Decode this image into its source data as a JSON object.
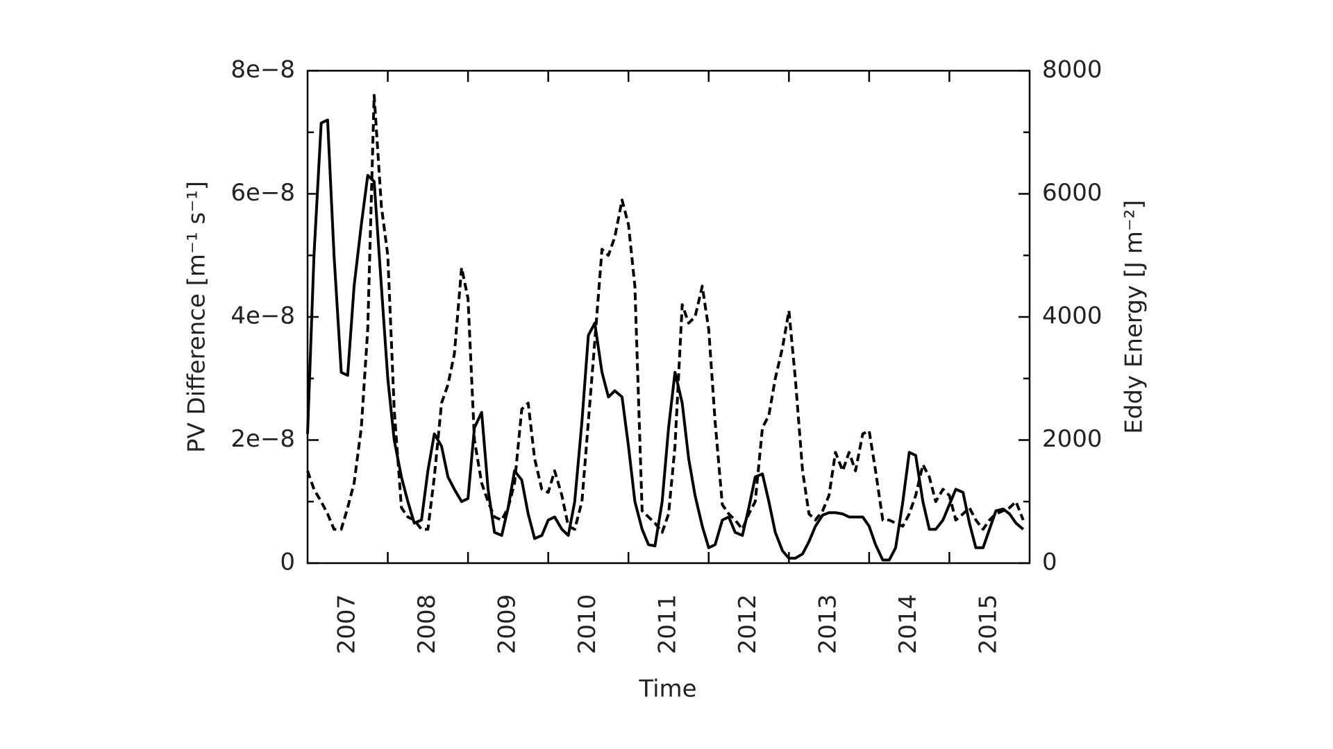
{
  "chart_data": {
    "type": "line",
    "xlabel": "Time",
    "ylabel": "PV Difference [m⁻¹ s⁻¹]",
    "y2label": "Eddy Energy [J m⁻²]",
    "xlim": [
      2007,
      2016
    ],
    "xticks": [
      {
        "value": 2007.5,
        "label": "2007"
      },
      {
        "value": 2008.5,
        "label": "2008"
      },
      {
        "value": 2009.5,
        "label": "2009"
      },
      {
        "value": 2010.5,
        "label": "2010"
      },
      {
        "value": 2011.5,
        "label": "2011"
      },
      {
        "value": 2012.5,
        "label": "2012"
      },
      {
        "value": 2013.5,
        "label": "2013"
      },
      {
        "value": 2014.5,
        "label": "2014"
      },
      {
        "value": 2015.5,
        "label": "2015"
      }
    ],
    "xminor": [
      2008,
      2009,
      2010,
      2011,
      2012,
      2013,
      2014,
      2015
    ],
    "ylim": [
      0,
      8e-08
    ],
    "yticks": [
      0,
      {
        "value": 2e-08,
        "label": "2e−8"
      },
      {
        "value": 4e-08,
        "label": "4e−8"
      },
      {
        "value": 6e-08,
        "label": "6e−8"
      },
      {
        "value": 8e-08,
        "label": "8e−8"
      }
    ],
    "yminor": [
      1e-08,
      3e-08,
      5e-08,
      7e-08
    ],
    "y2lim": [
      0,
      8000
    ],
    "y2ticks": [
      0,
      2000,
      4000,
      6000,
      8000
    ],
    "y2minor": [
      1000,
      3000,
      5000,
      7000
    ],
    "x": [
      2007,
      2007.08,
      2007.17,
      2007.25,
      2007.33,
      2007.42,
      2007.5,
      2007.58,
      2007.67,
      2007.75,
      2007.83,
      2007.92,
      2008,
      2008.08,
      2008.17,
      2008.25,
      2008.33,
      2008.42,
      2008.5,
      2008.58,
      2008.67,
      2008.75,
      2008.83,
      2008.92,
      2009,
      2009.08,
      2009.17,
      2009.25,
      2009.33,
      2009.42,
      2009.5,
      2009.58,
      2009.67,
      2009.75,
      2009.83,
      2009.92,
      2010,
      2010.08,
      2010.17,
      2010.25,
      2010.33,
      2010.42,
      2010.5,
      2010.58,
      2010.67,
      2010.75,
      2010.83,
      2010.92,
      2011,
      2011.08,
      2011.17,
      2011.25,
      2011.33,
      2011.42,
      2011.5,
      2011.58,
      2011.67,
      2011.75,
      2011.83,
      2011.92,
      2012,
      2012.08,
      2012.17,
      2012.25,
      2012.33,
      2012.42,
      2012.5,
      2012.58,
      2012.67,
      2012.75,
      2012.83,
      2012.92,
      2013,
      2013.08,
      2013.17,
      2013.25,
      2013.33,
      2013.42,
      2013.5,
      2013.58,
      2013.67,
      2013.75,
      2013.83,
      2013.92,
      2014,
      2014.08,
      2014.17,
      2014.25,
      2014.33,
      2014.42,
      2014.5,
      2014.58,
      2014.67,
      2014.75,
      2014.83,
      2014.92,
      2015,
      2015.08,
      2015.17,
      2015.25,
      2015.33,
      2015.42,
      2015.5,
      2015.58,
      2015.67,
      2015.75,
      2015.83,
      2015.92
    ],
    "series": [
      {
        "color": "#000000",
        "dashed": false,
        "values": [
          2.1e-08,
          5e-08,
          7.15e-08,
          7.2e-08,
          5e-08,
          3.1e-08,
          3.05e-08,
          4.5e-08,
          5.5e-08,
          6.3e-08,
          6.2e-08,
          4.5e-08,
          3e-08,
          2e-08,
          1.4e-08,
          1e-08,
          6.5e-09,
          7e-09,
          1.5e-08,
          2.1e-08,
          1.9e-08,
          1.4e-08,
          1.2e-08,
          1e-08,
          1.05e-08,
          2.2e-08,
          2.45e-08,
          1.2e-08,
          5e-09,
          4.5e-09,
          9e-09,
          1.5e-08,
          1.35e-08,
          8e-09,
          4e-09,
          4.5e-09,
          7e-09,
          7.5e-09,
          5.5e-09,
          4.5e-09,
          1e-08,
          2.3e-08,
          3.7e-08,
          3.9e-08,
          3.1e-08,
          2.7e-08,
          2.8e-08,
          2.7e-08,
          1.9e-08,
          1e-08,
          5.5e-09,
          3e-09,
          2.8e-09,
          1e-08,
          2.2e-08,
          3.1e-08,
          2.6e-08,
          1.7e-08,
          1.1e-08,
          6e-09,
          2.5e-09,
          3e-09,
          7e-09,
          7.5e-09,
          5e-09,
          4.5e-09,
          9e-09,
          1.4e-08,
          1.45e-08,
          1e-08,
          5e-09,
          2e-09,
          8e-10,
          8e-10,
          1.5e-09,
          3.5e-09,
          6e-09,
          7.8e-09,
          8.2e-09,
          8.2e-09,
          8e-09,
          7.5e-09,
          7.5e-09,
          7.5e-09,
          6e-09,
          3e-09,
          5e-10,
          5e-10,
          2.5e-09,
          1e-08,
          1.8e-08,
          1.75e-08,
          1e-08,
          5.5e-09,
          5.5e-09,
          7e-09,
          9.5e-09,
          1.2e-08,
          1.15e-08,
          6.5e-09,
          2.5e-09,
          2.5e-09,
          5.5e-09,
          8.5e-09,
          8.8e-09,
          8e-09,
          6.5e-09,
          5.5e-09
        ]
      },
      {
        "color": "#000000",
        "dashed": true,
        "axis": "y2",
        "values": [
          1500,
          1200,
          1000,
          800,
          550,
          550,
          900,
          1300,
          2200,
          3800,
          7600,
          5800,
          5000,
          2500,
          900,
          750,
          700,
          550,
          550,
          1400,
          2600,
          2900,
          3400,
          4800,
          4300,
          2000,
          1300,
          1000,
          750,
          700,
          900,
          1300,
          2500,
          2600,
          1700,
          1200,
          1150,
          1500,
          1100,
          600,
          550,
          1000,
          2300,
          3600,
          5100,
          5000,
          5300,
          5900,
          5500,
          4500,
          850,
          750,
          650,
          500,
          800,
          1900,
          4200,
          3900,
          4000,
          4500,
          3800,
          2300,
          950,
          800,
          700,
          550,
          800,
          1000,
          2200,
          2400,
          3000,
          3500,
          4100,
          3000,
          1500,
          800,
          700,
          850,
          1100,
          1800,
          1500,
          1800,
          1500,
          2100,
          2150,
          1500,
          700,
          700,
          650,
          600,
          800,
          1100,
          1600,
          1400,
          1000,
          1200,
          1100,
          700,
          800,
          900,
          700,
          550,
          700,
          800,
          850,
          900,
          1000,
          700
        ]
      }
    ]
  }
}
